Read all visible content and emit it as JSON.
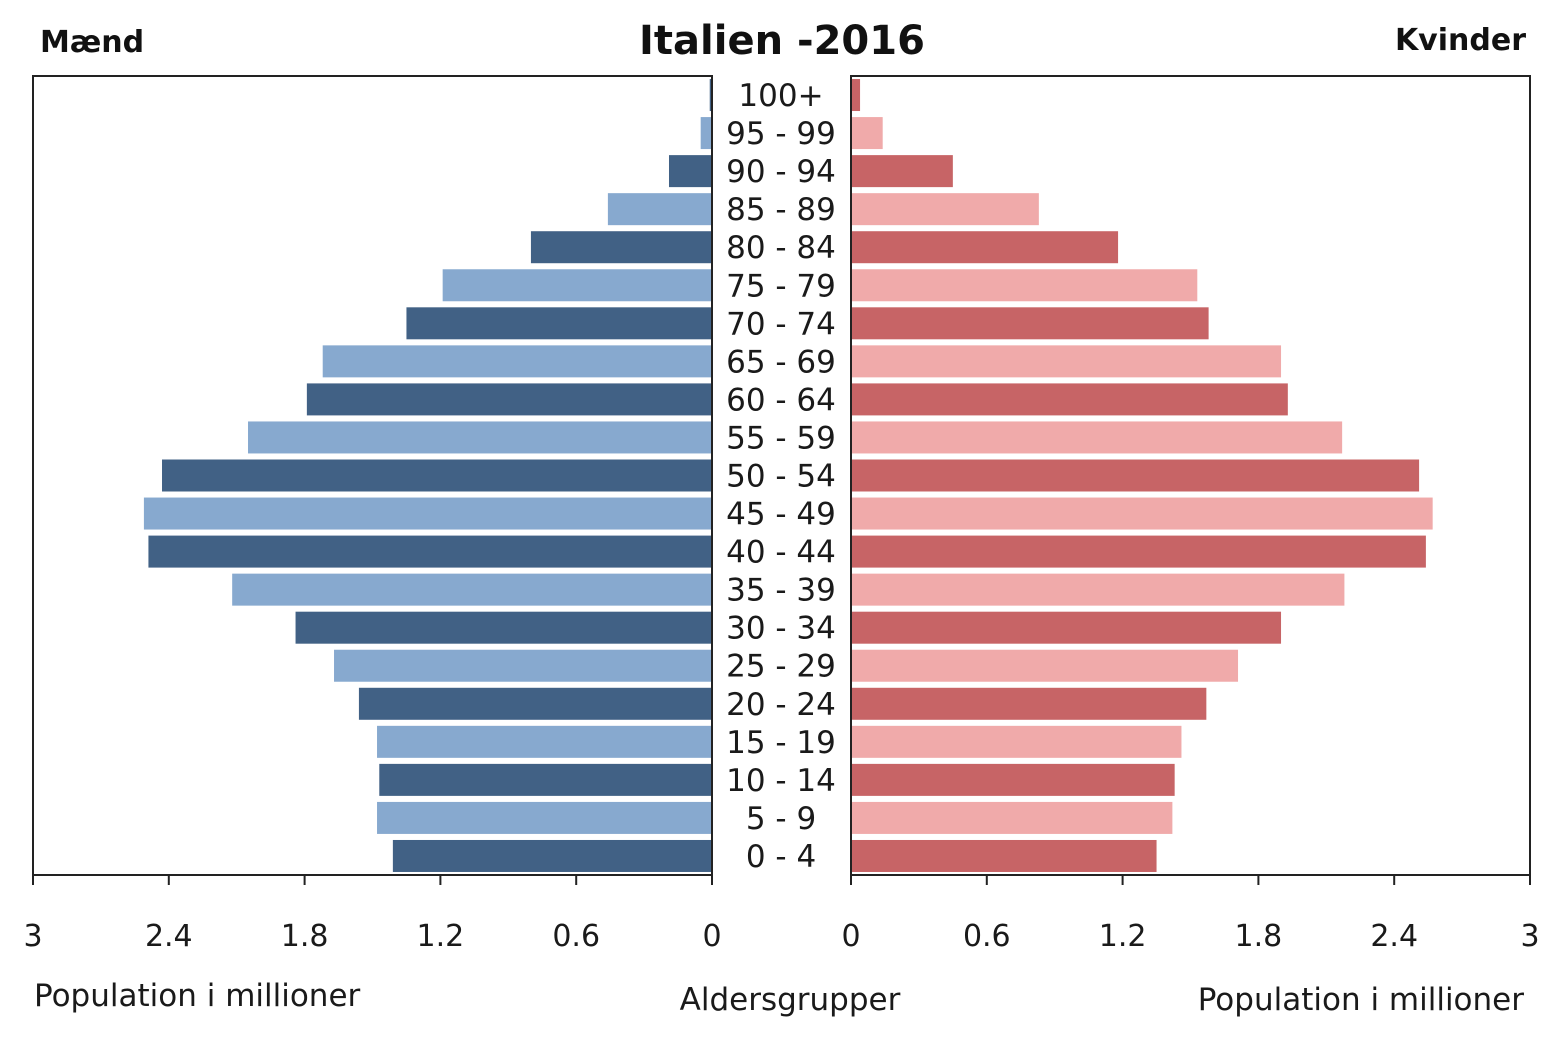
{
  "chart_data": {
    "type": "bar",
    "title": "Italien -2016",
    "left_label": "Mænd",
    "right_label": "Kvinder",
    "xlabel_left": "Population i millioner",
    "xlabel_right": "Population i millioner",
    "center_label": "Aldersgrupper",
    "categories": [
      "0 - 4",
      "5 - 9",
      "10 - 14",
      "15 - 19",
      "20 - 24",
      "25 - 29",
      "30 - 34",
      "35 - 39",
      "40 - 44",
      "45 - 49",
      "50 - 54",
      "55 - 59",
      "60 - 64",
      "65 - 69",
      "70 - 74",
      "75 - 79",
      "80 - 84",
      "85 - 89",
      "90 - 94",
      "95 - 99",
      "100+"
    ],
    "series": [
      {
        "name": "Mænd",
        "values": [
          1.41,
          1.48,
          1.47,
          1.48,
          1.56,
          1.67,
          1.84,
          2.12,
          2.49,
          2.51,
          2.43,
          2.05,
          1.79,
          1.72,
          1.35,
          1.19,
          0.8,
          0.46,
          0.19,
          0.05,
          0.01
        ],
        "colors": [
          "#416185",
          "#87a9cf"
        ]
      },
      {
        "name": "Kvinder",
        "values": [
          1.35,
          1.42,
          1.43,
          1.46,
          1.57,
          1.71,
          1.9,
          2.18,
          2.54,
          2.57,
          2.51,
          2.17,
          1.93,
          1.9,
          1.58,
          1.53,
          1.18,
          0.83,
          0.45,
          0.14,
          0.04
        ],
        "colors": [
          "#c76466",
          "#f0aaaa"
        ]
      }
    ],
    "xlim": [
      0,
      3
    ],
    "xticks": [
      "0",
      "0.6",
      "1.2",
      "1.8",
      "2.4",
      "3"
    ],
    "grid": false
  }
}
